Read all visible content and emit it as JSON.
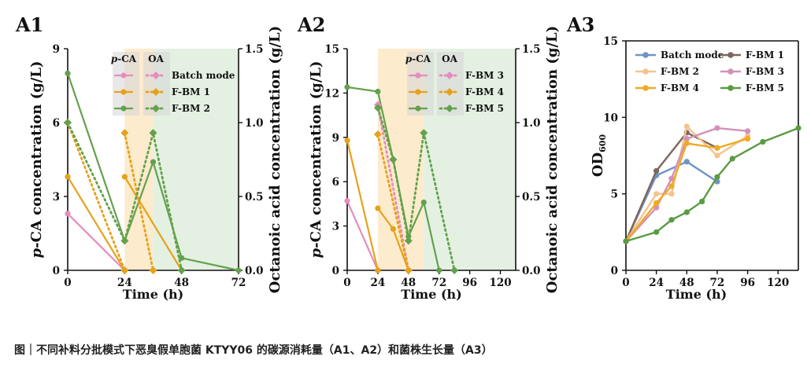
{
  "caption": "图｜不同补料分批模式下恶臭假单胞菌 KTYY06 的碳源消耗量（A1、A2）和菌株生长量（A3）",
  "colors": {
    "Batch mode": "#e48dbf",
    "F-BM 1": "#e6a21b",
    "F-BM 2": "#64a14d",
    "F-BM 3": "#e48dbf",
    "F-BM 4": "#e6a21b",
    "F-BM 5": "#64a14d",
    "growth_Batch mode": "#6f93c4",
    "growth_F-BM 1": "#7d665c",
    "growth_F-BM 2": "#f4c38e",
    "growth_F-BM 3": "#d391b8",
    "growth_F-BM 4": "#f0aa22",
    "growth_F-BM 5": "#5a9b43",
    "shade_yellow": "#fbe7c4",
    "shade_green": "#dfeedd",
    "legend_box": "#d5d5d5"
  },
  "chart_data": [
    {
      "id": "A1",
      "type": "line",
      "panel_label": "A1",
      "xlabel": "Time (h)",
      "ylabel": "p-CA concentration (g/L)",
      "ylabel_italic_prefix": "p",
      "y2label": "Octanoic acid concentration (g/L)",
      "xlim": [
        0,
        72
      ],
      "ylim": [
        0,
        9
      ],
      "y2lim": [
        0,
        1.5
      ],
      "xticks": [
        "0",
        "24",
        "48",
        "72"
      ],
      "yticks": [
        "0",
        "3",
        "6",
        "9"
      ],
      "y2ticks": [
        "0.0",
        "0.5",
        "1.0",
        "1.5"
      ],
      "shaded_regions": [
        {
          "x": [
            24,
            36
          ],
          "color": "yellow"
        },
        {
          "x": [
            36,
            72
          ],
          "color": "green"
        }
      ],
      "legend_headers": [
        "p-CA",
        "OA"
      ],
      "legend": [
        "Batch mode",
        "F-BM 1",
        "F-BM 2"
      ],
      "series": [
        {
          "name": "Batch mode",
          "variable": "p-CA",
          "axis": "left",
          "style": "solid",
          "x": [
            0,
            24
          ],
          "y": [
            2.3,
            0.0
          ]
        },
        {
          "name": "F-BM 1",
          "variable": "p-CA",
          "axis": "left",
          "style": "solid",
          "x": [
            0,
            24
          ],
          "y": [
            3.8,
            0.0
          ]
        },
        {
          "name": "F-BM 1",
          "variable": "p-CA",
          "axis": "left",
          "style": "solid",
          "x": [
            24,
            48
          ],
          "y": [
            3.8,
            0.0
          ]
        },
        {
          "name": "F-BM 2",
          "variable": "p-CA",
          "axis": "left",
          "style": "solid",
          "x": [
            0,
            24,
            36,
            48,
            72
          ],
          "y": [
            8.0,
            1.2,
            4.4,
            0.5,
            0.0
          ]
        },
        {
          "name": "F-BM 1",
          "variable": "OA",
          "axis": "right",
          "style": "dotted",
          "x": [
            0,
            24
          ],
          "y": [
            1.0,
            0.0
          ]
        },
        {
          "name": "F-BM 1",
          "variable": "OA",
          "axis": "right",
          "style": "dotted",
          "x": [
            24,
            36
          ],
          "y": [
            0.93,
            0.0
          ]
        },
        {
          "name": "F-BM 2",
          "variable": "OA",
          "axis": "right",
          "style": "dotted",
          "x": [
            0,
            24,
            36,
            48
          ],
          "y": [
            1.0,
            0.2,
            0.93,
            0.0
          ]
        }
      ]
    },
    {
      "id": "A2",
      "type": "line",
      "panel_label": "A2",
      "xlabel": "Time (h)",
      "ylabel": "p-CA concentration (g/L)",
      "ylabel_italic_prefix": "p",
      "y2label": "Octanoic acid concentration (g/L)",
      "xlim": [
        0,
        132
      ],
      "ylim": [
        0,
        15
      ],
      "y2lim": [
        0,
        1.5
      ],
      "xticks": [
        "0",
        "24",
        "48",
        "72",
        "96",
        "120"
      ],
      "yticks": [
        "0",
        "3",
        "6",
        "9",
        "12",
        "15"
      ],
      "y2ticks": [
        "0.0",
        "0.5",
        "1.0",
        "1.5"
      ],
      "shaded_regions": [
        {
          "x": [
            24,
            60
          ],
          "color": "yellow"
        },
        {
          "x": [
            60,
            132
          ],
          "color": "green"
        }
      ],
      "legend_headers": [
        "p-CA",
        "OA"
      ],
      "legend": [
        "F-BM 3",
        "F-BM 4",
        "F-BM 5"
      ],
      "series": [
        {
          "name": "F-BM 3",
          "variable": "p-CA",
          "axis": "left",
          "style": "solid",
          "x": [
            0,
            24
          ],
          "y": [
            4.7,
            0.0
          ]
        },
        {
          "name": "F-BM 4",
          "variable": "p-CA",
          "axis": "left",
          "style": "solid",
          "x": [
            0,
            24
          ],
          "y": [
            8.8,
            0.0
          ]
        },
        {
          "name": "F-BM 4",
          "variable": "p-CA",
          "axis": "left",
          "style": "solid",
          "x": [
            24,
            36,
            48
          ],
          "y": [
            4.2,
            2.8,
            0.0
          ]
        },
        {
          "name": "F-BM 5",
          "variable": "p-CA",
          "axis": "left",
          "style": "solid",
          "x": [
            0,
            24,
            36,
            48,
            60,
            72
          ],
          "y": [
            12.4,
            12.1,
            7.5,
            2.3,
            4.6,
            0.0
          ]
        },
        {
          "name": "F-BM 3",
          "variable": "OA",
          "axis": "right",
          "style": "dotted",
          "x": [
            24,
            48
          ],
          "y": [
            1.12,
            0.0
          ]
        },
        {
          "name": "F-BM 4",
          "variable": "OA",
          "axis": "right",
          "style": "dotted",
          "x": [
            24,
            48
          ],
          "y": [
            0.92,
            0.0
          ]
        },
        {
          "name": "F-BM 5",
          "variable": "OA",
          "axis": "right",
          "style": "dotted",
          "x": [
            24,
            36,
            48,
            60,
            84
          ],
          "y": [
            1.1,
            0.75,
            0.2,
            0.93,
            0.0
          ]
        }
      ]
    },
    {
      "id": "A3",
      "type": "line",
      "panel_label": "A3",
      "xlabel": "Time (h)",
      "ylabel": "OD",
      "ylabel_sub": "600",
      "xlim": [
        0,
        136
      ],
      "ylim": [
        0,
        15
      ],
      "xticks": [
        "0",
        "24",
        "48",
        "72",
        "96",
        "120"
      ],
      "yticks": [
        "0",
        "5",
        "10",
        "15"
      ],
      "legend": [
        "Batch mode",
        "F-BM 1",
        "F-BM 2",
        "F-BM 3",
        "F-BM 4",
        "F-BM 5"
      ],
      "series": [
        {
          "name": "Batch mode",
          "x": [
            0,
            24,
            48,
            72
          ],
          "y": [
            1.9,
            6.2,
            7.1,
            5.8
          ]
        },
        {
          "name": "F-BM 1",
          "x": [
            0,
            24,
            48,
            72
          ],
          "y": [
            1.9,
            6.5,
            9.0,
            8.0
          ]
        },
        {
          "name": "F-BM 2",
          "x": [
            0,
            24,
            36,
            48,
            72,
            96
          ],
          "y": [
            1.9,
            5.0,
            5.0,
            9.4,
            7.5,
            8.8
          ]
        },
        {
          "name": "F-BM 3",
          "x": [
            0,
            24,
            36,
            48,
            72,
            96
          ],
          "y": [
            1.9,
            4.1,
            6.0,
            8.6,
            9.3,
            9.1
          ]
        },
        {
          "name": "F-BM 4",
          "x": [
            0,
            24,
            36,
            48,
            72,
            96
          ],
          "y": [
            1.9,
            4.4,
            5.5,
            8.3,
            8.0,
            8.6
          ]
        },
        {
          "name": "F-BM 5",
          "x": [
            0,
            24,
            36,
            48,
            60,
            72,
            84,
            108,
            136
          ],
          "y": [
            1.9,
            2.5,
            3.3,
            3.8,
            4.5,
            6.1,
            7.3,
            8.4,
            9.3
          ]
        }
      ]
    }
  ]
}
